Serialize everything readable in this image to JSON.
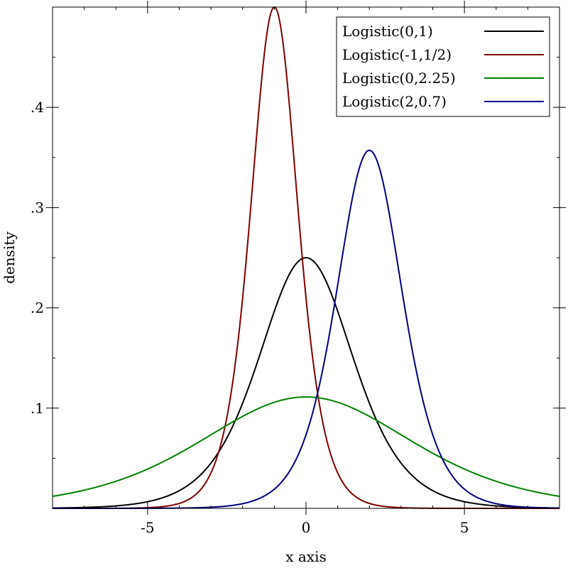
{
  "chart_data": {
    "type": "line",
    "title": "",
    "xlabel": "x axis",
    "ylabel": "density",
    "xlim": [
      -8,
      8
    ],
    "ylim": [
      0,
      0.5
    ],
    "x_ticks": [
      {
        "value": -5,
        "label": "-5"
      },
      {
        "value": 0,
        "label": "0"
      },
      {
        "value": 5,
        "label": "5"
      }
    ],
    "y_ticks": [
      {
        "value": 0.1,
        "label": ".1"
      },
      {
        "value": 0.2,
        "label": ".2"
      },
      {
        "value": 0.3,
        "label": ".3"
      },
      {
        "value": 0.4,
        "label": ".4"
      }
    ],
    "legend_position": "top-right",
    "grid": false,
    "series": [
      {
        "name": "Logistic(0,1)",
        "distribution": "logistic",
        "mean": 0,
        "scale": 1,
        "color": "#000000"
      },
      {
        "name": "Logistic(-1,1/2)",
        "distribution": "logistic",
        "mean": -1,
        "scale": 0.5,
        "color": "#7f0000"
      },
      {
        "name": "Logistic(0,2.25)",
        "distribution": "logistic",
        "mean": 0,
        "scale": 2.25,
        "color": "#008000"
      },
      {
        "name": "Logistic(2,0.7)",
        "distribution": "logistic",
        "mean": 2,
        "scale": 0.7,
        "color": "#00007f"
      }
    ]
  }
}
